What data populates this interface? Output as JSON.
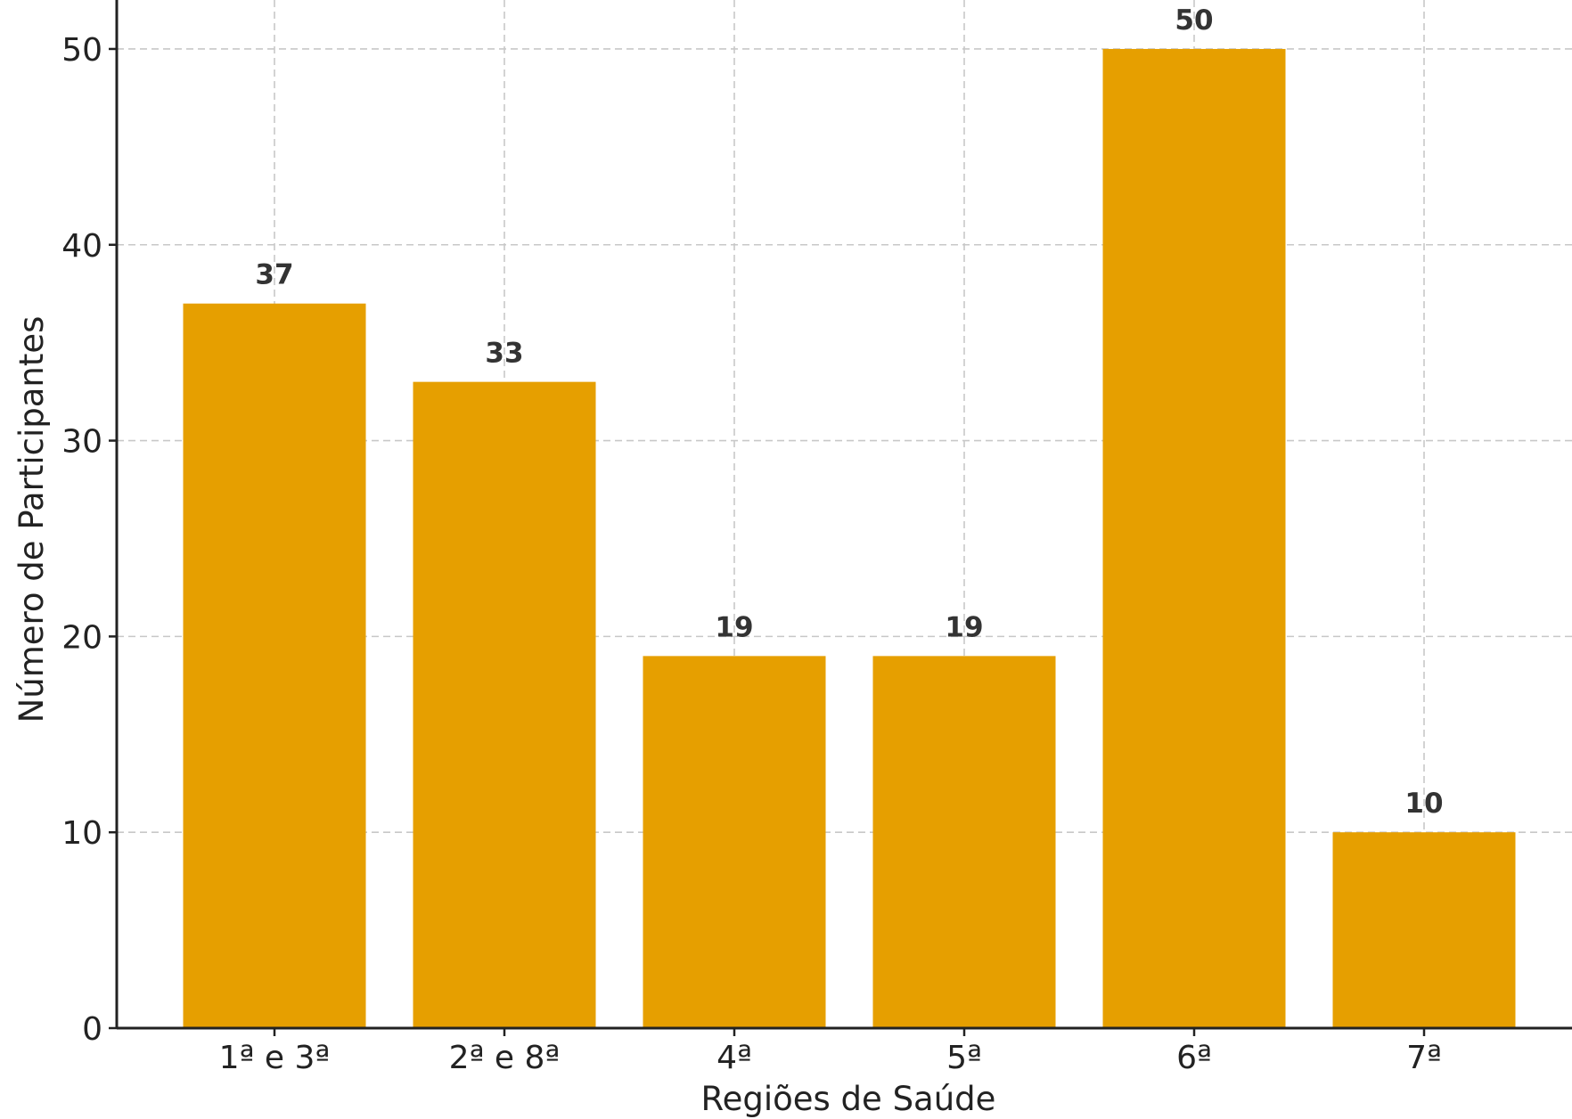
{
  "chart_data": {
    "type": "bar",
    "title": "",
    "xlabel": "Regiões de Saúde",
    "ylabel": "Número de Participantes",
    "categories": [
      "1ª e 3ª",
      "2ª e 8ª",
      "4ª",
      "5ª",
      "6ª",
      "7ª"
    ],
    "values": [
      37,
      33,
      19,
      19,
      50,
      10
    ],
    "data_labels": [
      "37",
      "33",
      "19",
      "19",
      "50",
      "10"
    ],
    "yticks": [
      0,
      10,
      20,
      30,
      40,
      50
    ],
    "ylim": [
      0,
      52.5
    ],
    "grid": true,
    "bar_color": "#e69f00"
  }
}
